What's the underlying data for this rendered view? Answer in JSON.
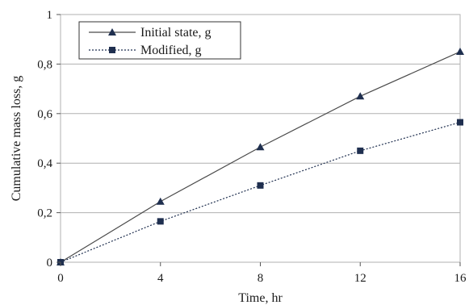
{
  "chart_data": {
    "type": "line",
    "xlabel": "Time, hr",
    "ylabel": "Cumulative mass loss, g",
    "xlim": [
      0,
      16
    ],
    "ylim": [
      0,
      1
    ],
    "xticks": [
      0,
      4,
      8,
      12,
      16
    ],
    "yticks": [
      0,
      0.2,
      0.4,
      0.6,
      0.8,
      1
    ],
    "xtick_labels": [
      "0",
      "4",
      "8",
      "12",
      "16"
    ],
    "ytick_labels": [
      "0",
      "0,2",
      "0,4",
      "0,6",
      "0,8",
      "1"
    ],
    "grid": "horizontal",
    "legend_position": "top-left",
    "series": [
      {
        "name": "Initial state, g",
        "marker": "triangle",
        "line_style": "solid",
        "color": "#4a4a4a",
        "marker_color": "#1f2f4f",
        "x": [
          0,
          4,
          8,
          12,
          16
        ],
        "y": [
          0,
          0.245,
          0.465,
          0.67,
          0.85
        ]
      },
      {
        "name": "Modified, g",
        "marker": "square",
        "line_style": "dotted",
        "color": "#1f2f4f",
        "marker_color": "#1f2f4f",
        "x": [
          0,
          4,
          8,
          12,
          16
        ],
        "y": [
          0,
          0.165,
          0.31,
          0.45,
          0.565
        ]
      }
    ]
  }
}
